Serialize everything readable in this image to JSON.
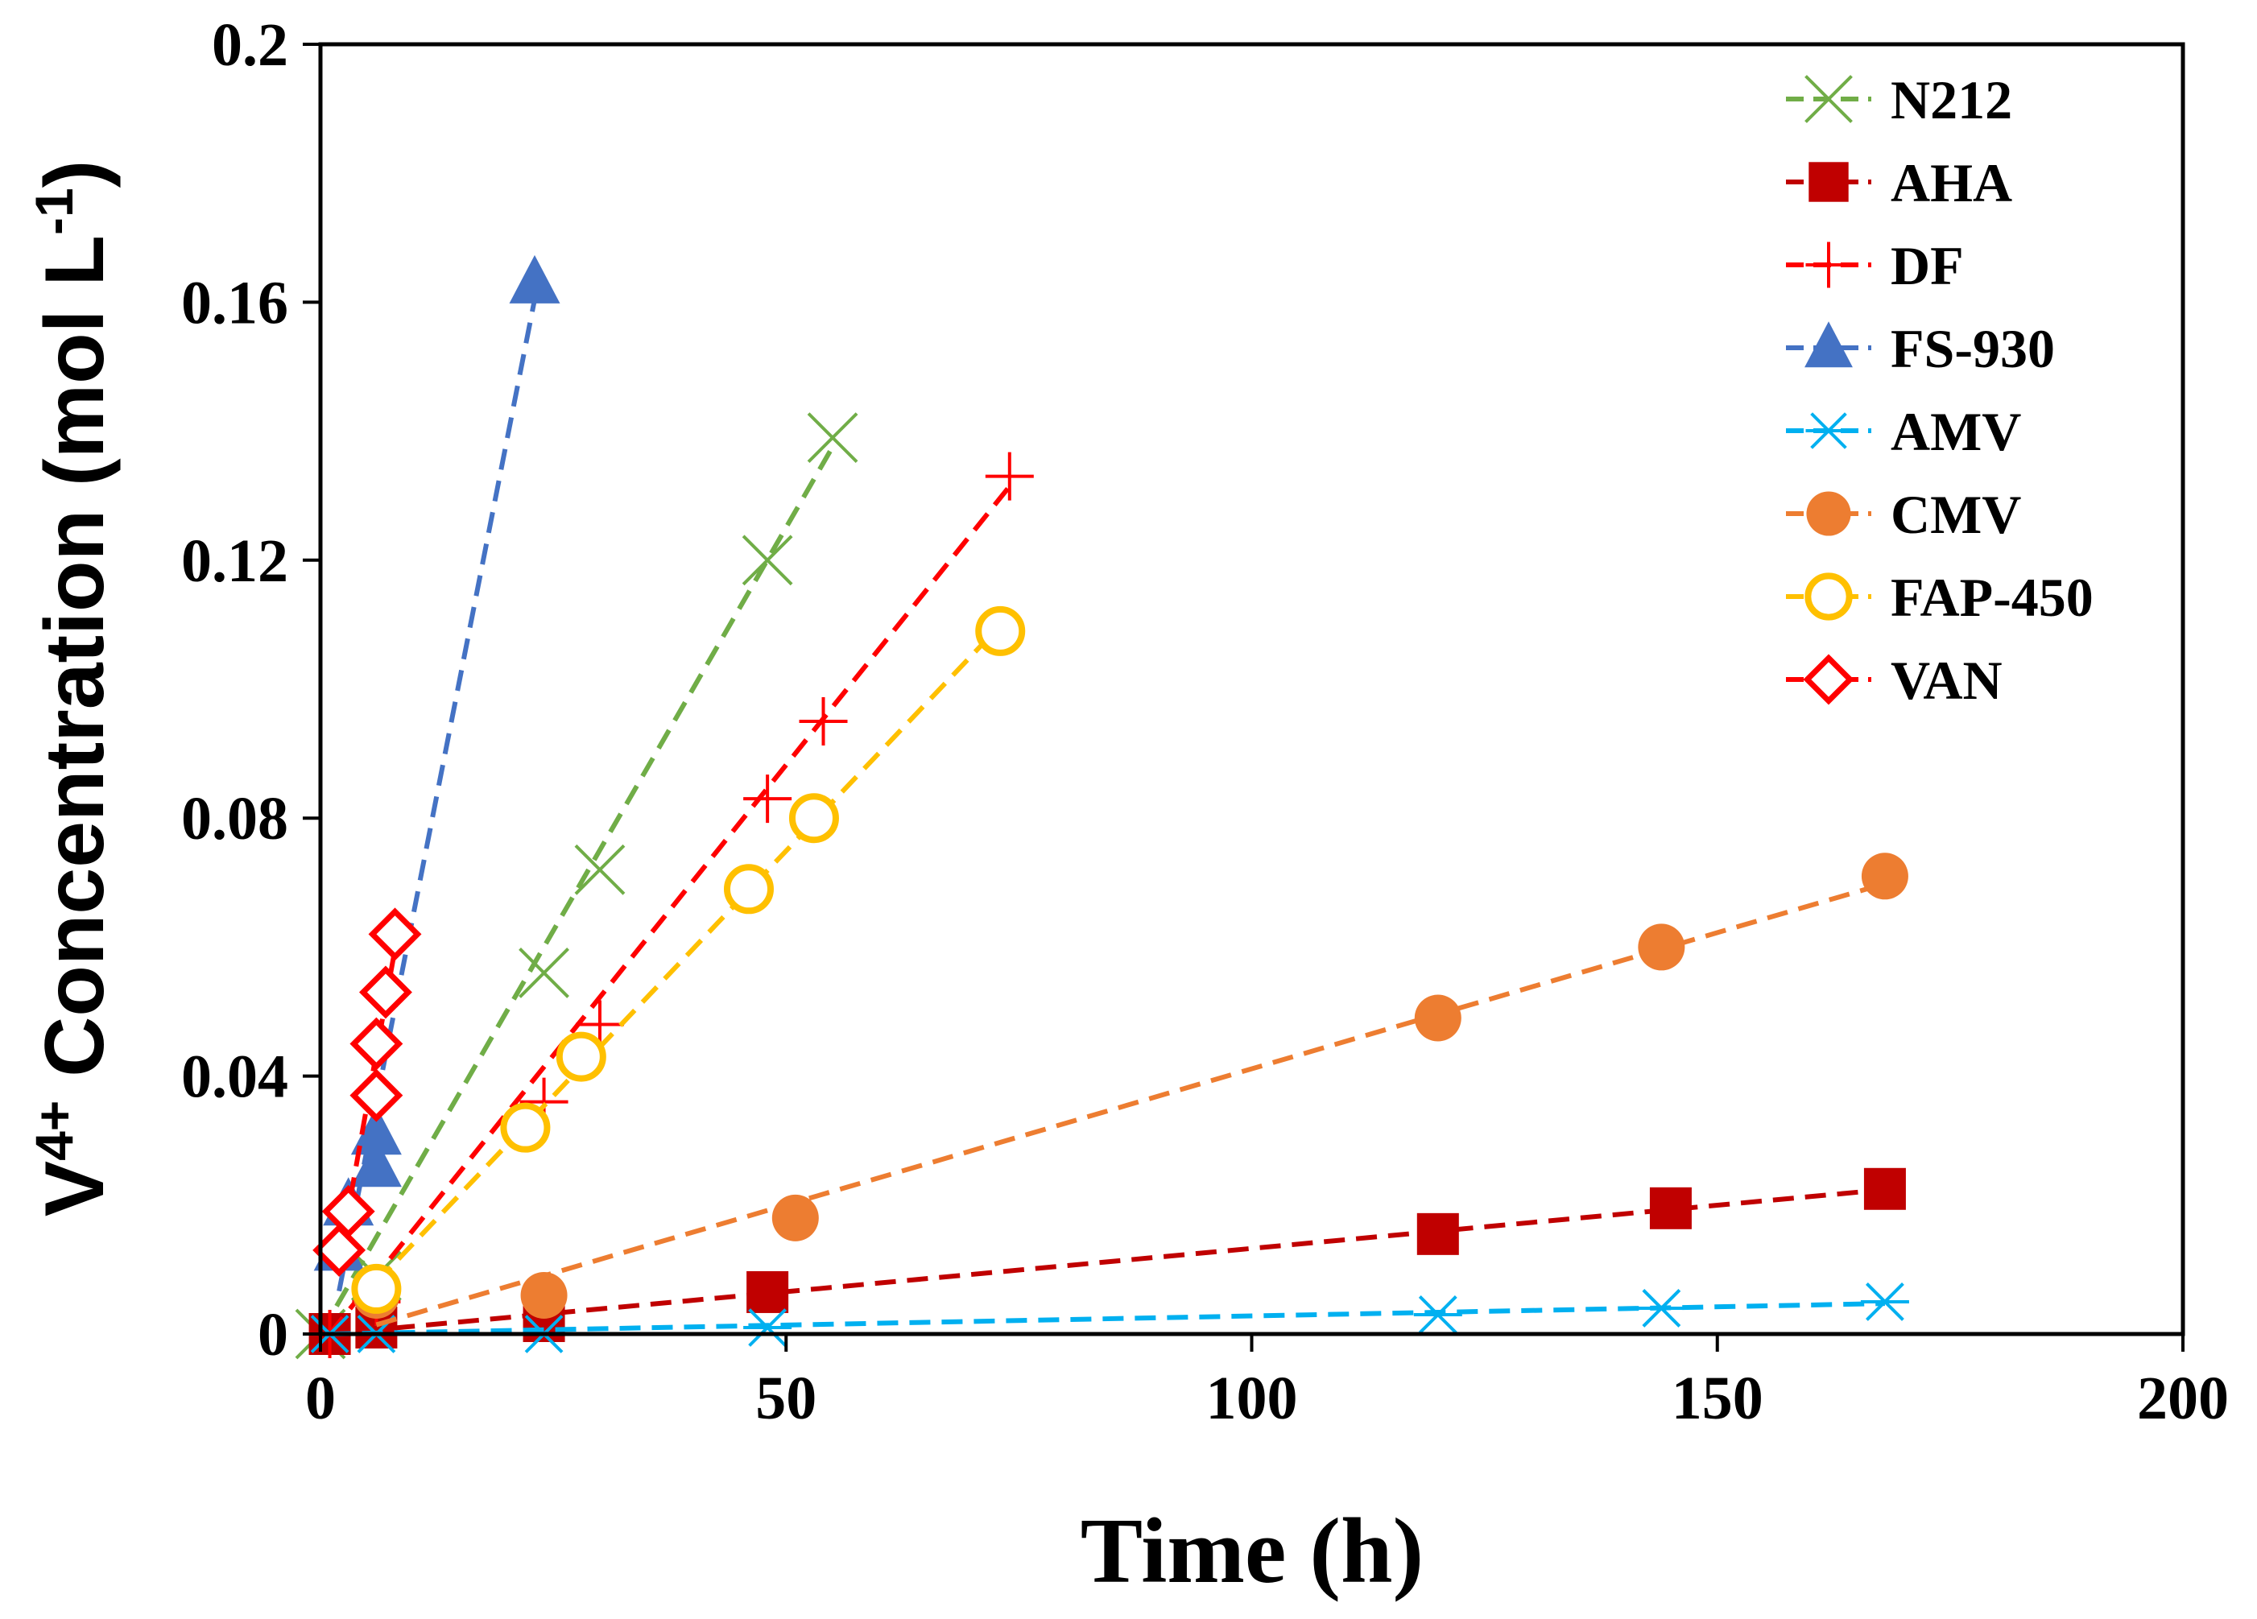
{
  "chart_data": {
    "type": "line",
    "xlabel": "Time (h)",
    "ylabel": {
      "base": "V",
      "sup": "4+",
      "middle": " Concentration (mol L",
      "exp": "-1",
      "end": ")"
    },
    "xlim": [
      0,
      200
    ],
    "ylim": [
      0,
      0.2
    ],
    "xticks": [
      0,
      50,
      100,
      150,
      200
    ],
    "yticks": [
      0,
      0.04,
      0.08,
      0.12,
      0.16,
      0.2
    ],
    "xtick_labels": [
      "0",
      "50",
      "100",
      "150",
      "200"
    ],
    "ytick_labels": [
      "0",
      "0.04",
      "0.08",
      "0.12",
      "0.16",
      "0.2"
    ],
    "grid": false,
    "legend_position": "top-right",
    "series": [
      {
        "name": "N212",
        "color": "#70ad47",
        "marker": "x",
        "points": [
          [
            0,
            0
          ],
          [
            6,
            0.009
          ],
          [
            24,
            0.056
          ],
          [
            30,
            0.072
          ],
          [
            48,
            0.12
          ],
          [
            55,
            0.139
          ]
        ]
      },
      {
        "name": "AHA",
        "color": "#c00000",
        "marker": "square",
        "points": [
          [
            1,
            0
          ],
          [
            6,
            0.001
          ],
          [
            24,
            0.002
          ],
          [
            48,
            0.0065
          ],
          [
            120,
            0.0155
          ],
          [
            145,
            0.0195
          ],
          [
            168,
            0.0225
          ]
        ]
      },
      {
        "name": "DF",
        "color": "#ff0000",
        "marker": "plus",
        "points": [
          [
            1,
            0
          ],
          [
            6,
            0.005
          ],
          [
            24,
            0.036
          ],
          [
            30,
            0.048
          ],
          [
            48,
            0.083
          ],
          [
            54,
            0.095
          ],
          [
            74,
            0.133
          ]
        ]
      },
      {
        "name": "FS-930",
        "color": "#4472c4",
        "marker": "triangle",
        "points": [
          [
            2,
            0.013
          ],
          [
            3,
            0.02
          ],
          [
            6,
            0.026
          ],
          [
            6,
            0.031
          ],
          [
            23,
            0.163
          ]
        ]
      },
      {
        "name": "AMV",
        "color": "#00b0f0",
        "marker": "asterisk",
        "points": [
          [
            1,
            0
          ],
          [
            6,
            0
          ],
          [
            24,
            0
          ],
          [
            48,
            0.001
          ],
          [
            120,
            0.003
          ],
          [
            144,
            0.004
          ],
          [
            168,
            0.005
          ]
        ]
      },
      {
        "name": "CMV",
        "color": "#ed7d31",
        "marker": "circle-filled",
        "points": [
          [
            6,
            0.006
          ],
          [
            24,
            0.006
          ],
          [
            51,
            0.018
          ],
          [
            120,
            0.049
          ],
          [
            144,
            0.06
          ],
          [
            168,
            0.071
          ]
        ]
      },
      {
        "name": "FAP-450",
        "color": "#ffc000",
        "marker": "circle-open",
        "points": [
          [
            6,
            0.007
          ],
          [
            22,
            0.032
          ],
          [
            28,
            0.043
          ],
          [
            46,
            0.069
          ],
          [
            53,
            0.08
          ],
          [
            73,
            0.109
          ]
        ]
      },
      {
        "name": "VAN",
        "color": "#ff0000",
        "marker": "diamond",
        "points": [
          [
            2,
            0.013
          ],
          [
            3,
            0.019
          ],
          [
            6,
            0.037
          ],
          [
            6,
            0.045
          ],
          [
            7,
            0.053
          ],
          [
            8,
            0.062
          ]
        ]
      }
    ]
  }
}
